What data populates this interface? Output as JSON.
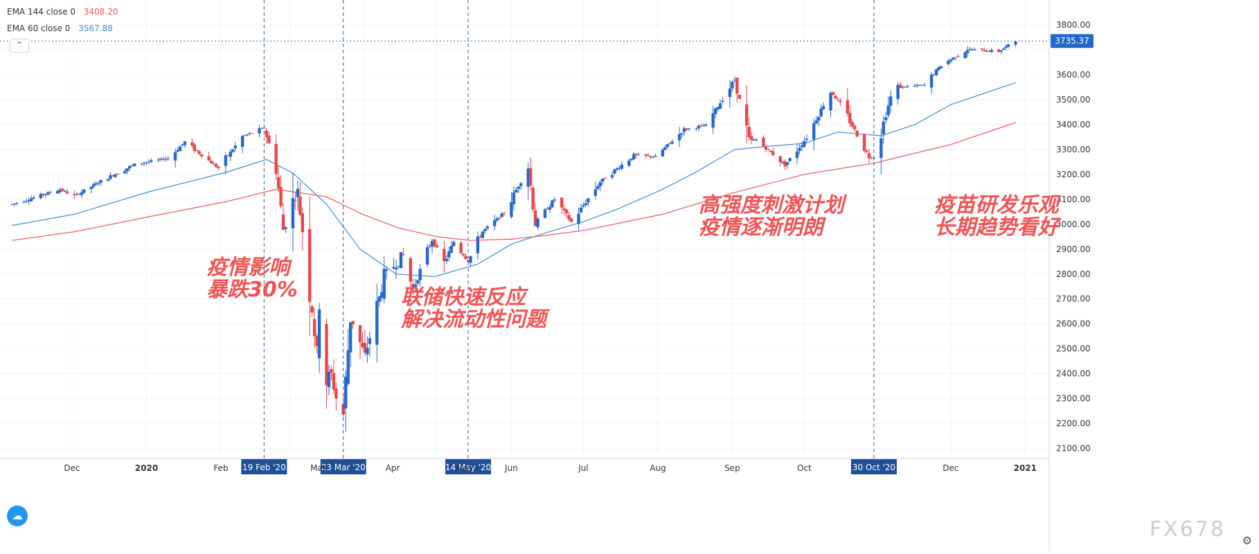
{
  "legend": {
    "ema144": {
      "label": "EMA 144 close 0",
      "value": "3408.20",
      "color": "#f05454"
    },
    "ema60": {
      "label": "EMA 60 close 0",
      "value": "3567.88",
      "color": "#3b8fdb"
    }
  },
  "last_price": "3735.37",
  "watermark": "FX678",
  "icons": {
    "collapse": "chevron-up-icon",
    "logo": "tradingview-logo-icon",
    "settings": "gear-icon"
  },
  "chart_data": {
    "type": "candlestick",
    "ylim": [
      2060,
      3900
    ],
    "y_ticks": [
      "2100.00",
      "2200.00",
      "2300.00",
      "2400.00",
      "2500.00",
      "2600.00",
      "2700.00",
      "2800.00",
      "2900.00",
      "3000.00",
      "3100.00",
      "3200.00",
      "3300.00",
      "3400.00",
      "3500.00",
      "3600.00",
      "3700.00",
      "3800.00"
    ],
    "x_labels": [
      {
        "text": "Dec",
        "date": "2019-12-01"
      },
      {
        "text": "2020",
        "date": "2020-01-01"
      },
      {
        "text": "Feb",
        "date": "2020-02-01"
      },
      {
        "text": "Mar",
        "date": "2020-03-01"
      },
      {
        "text": "Apr",
        "date": "2020-04-01"
      },
      {
        "text": "May",
        "date": "2020-05-01"
      },
      {
        "text": "Jun",
        "date": "2020-06-01"
      },
      {
        "text": "Jul",
        "date": "2020-07-01"
      },
      {
        "text": "Aug",
        "date": "2020-08-01"
      },
      {
        "text": "Sep",
        "date": "2020-09-01"
      },
      {
        "text": "Oct",
        "date": "2020-10-01"
      },
      {
        "text": "Dec",
        "date": "2020-12-01"
      },
      {
        "text": "2021",
        "date": "2021-01-01"
      }
    ],
    "markers": [
      {
        "text": "19 Feb '20",
        "date": "2020-02-19"
      },
      {
        "text": "23 Mar '20",
        "date": "2020-03-23"
      },
      {
        "text": "14 May '20",
        "date": "2020-05-14"
      },
      {
        "text": "30 Oct '20",
        "date": "2020-10-30"
      }
    ],
    "annotations": [
      {
        "lines": [
          "疫情影响",
          "暴跌30%"
        ],
        "date": "2020-01-26",
        "price": 2800
      },
      {
        "lines": [
          "联储快速反应",
          "解决流动性问题"
        ],
        "date": "2020-04-16",
        "price": 2680
      },
      {
        "lines": [
          "高强度刺激计划",
          "疫情逐渐明朗"
        ],
        "date": "2020-08-18",
        "price": 3050
      },
      {
        "lines": [
          "疫苗研发乐观",
          "长期趋势看好"
        ],
        "date": "2020-11-24",
        "price": 3050
      }
    ],
    "price_path": [
      [
        "2019-11-06",
        3080
      ],
      [
        "2019-11-26",
        3140
      ],
      [
        "2019-12-02",
        3113
      ],
      [
        "2019-12-12",
        3168
      ],
      [
        "2019-12-27",
        3240
      ],
      [
        "2020-01-10",
        3265
      ],
      [
        "2020-01-17",
        3330
      ],
      [
        "2020-01-31",
        3225
      ],
      [
        "2020-02-10",
        3352
      ],
      [
        "2020-02-19",
        3386
      ],
      [
        "2020-02-24",
        3225
      ],
      [
        "2020-02-27",
        2978
      ],
      [
        "2020-03-02",
        3090
      ],
      [
        "2020-03-04",
        3130
      ],
      [
        "2020-03-09",
        2746
      ],
      [
        "2020-03-12",
        2480
      ],
      [
        "2020-03-13",
        2711
      ],
      [
        "2020-03-16",
        2386
      ],
      [
        "2020-03-18",
        2398
      ],
      [
        "2020-03-20",
        2304
      ],
      [
        "2020-03-23",
        2237
      ],
      [
        "2020-03-26",
        2630
      ],
      [
        "2020-04-01",
        2470
      ],
      [
        "2020-04-06",
        2663
      ],
      [
        "2020-04-09",
        2790
      ],
      [
        "2020-04-17",
        2875
      ],
      [
        "2020-04-21",
        2737
      ],
      [
        "2020-04-29",
        2939
      ],
      [
        "2020-05-04",
        2842
      ],
      [
        "2020-05-08",
        2930
      ],
      [
        "2020-05-14",
        2852
      ],
      [
        "2020-05-20",
        2971
      ],
      [
        "2020-05-29",
        3044
      ],
      [
        "2020-06-08",
        3232
      ],
      [
        "2020-06-11",
        3002
      ],
      [
        "2020-06-19",
        3100
      ],
      [
        "2020-06-26",
        3009
      ],
      [
        "2020-07-08",
        3170
      ],
      [
        "2020-07-22",
        3276
      ],
      [
        "2020-07-31",
        3271
      ],
      [
        "2020-08-12",
        3380
      ],
      [
        "2020-08-21",
        3397
      ],
      [
        "2020-09-02",
        3580
      ],
      [
        "2020-09-08",
        3332
      ],
      [
        "2020-09-11",
        3340
      ],
      [
        "2020-09-23",
        3237
      ],
      [
        "2020-10-02",
        3348
      ],
      [
        "2020-10-12",
        3534
      ],
      [
        "2020-10-16",
        3483
      ],
      [
        "2020-10-28",
        3271
      ],
      [
        "2020-10-30",
        3270
      ],
      [
        "2020-11-06",
        3509
      ],
      [
        "2020-11-09",
        3550
      ],
      [
        "2020-11-20",
        3558
      ],
      [
        "2020-11-27",
        3638
      ],
      [
        "2020-12-08",
        3702
      ],
      [
        "2020-12-21",
        3694
      ],
      [
        "2020-12-28",
        3735
      ]
    ],
    "ema60_path": [
      [
        "2019-11-06",
        2995
      ],
      [
        "2019-12-02",
        3040
      ],
      [
        "2020-01-02",
        3130
      ],
      [
        "2020-02-03",
        3208
      ],
      [
        "2020-02-20",
        3260
      ],
      [
        "2020-03-02",
        3205
      ],
      [
        "2020-03-16",
        3080
      ],
      [
        "2020-03-30",
        2900
      ],
      [
        "2020-04-14",
        2800
      ],
      [
        "2020-04-30",
        2790
      ],
      [
        "2020-05-18",
        2840
      ],
      [
        "2020-06-01",
        2920
      ],
      [
        "2020-06-15",
        2965
      ],
      [
        "2020-07-01",
        3010
      ],
      [
        "2020-07-15",
        3060
      ],
      [
        "2020-08-03",
        3140
      ],
      [
        "2020-08-17",
        3210
      ],
      [
        "2020-09-02",
        3300
      ],
      [
        "2020-09-15",
        3312
      ],
      [
        "2020-10-01",
        3325
      ],
      [
        "2020-10-15",
        3370
      ],
      [
        "2020-11-02",
        3355
      ],
      [
        "2020-11-16",
        3400
      ],
      [
        "2020-12-01",
        3480
      ],
      [
        "2020-12-28",
        3568
      ]
    ],
    "ema144_path": [
      [
        "2019-11-06",
        2935
      ],
      [
        "2019-12-02",
        2970
      ],
      [
        "2020-01-02",
        3030
      ],
      [
        "2020-02-03",
        3090
      ],
      [
        "2020-02-24",
        3140
      ],
      [
        "2020-03-16",
        3110
      ],
      [
        "2020-03-31",
        3040
      ],
      [
        "2020-04-15",
        2985
      ],
      [
        "2020-05-01",
        2950
      ],
      [
        "2020-05-15",
        2935
      ],
      [
        "2020-06-01",
        2940
      ],
      [
        "2020-06-15",
        2955
      ],
      [
        "2020-07-01",
        2975
      ],
      [
        "2020-08-03",
        3040
      ],
      [
        "2020-09-01",
        3125
      ],
      [
        "2020-10-01",
        3200
      ],
      [
        "2020-10-30",
        3245
      ],
      [
        "2020-12-01",
        3320
      ],
      [
        "2020-12-28",
        3408
      ]
    ]
  }
}
